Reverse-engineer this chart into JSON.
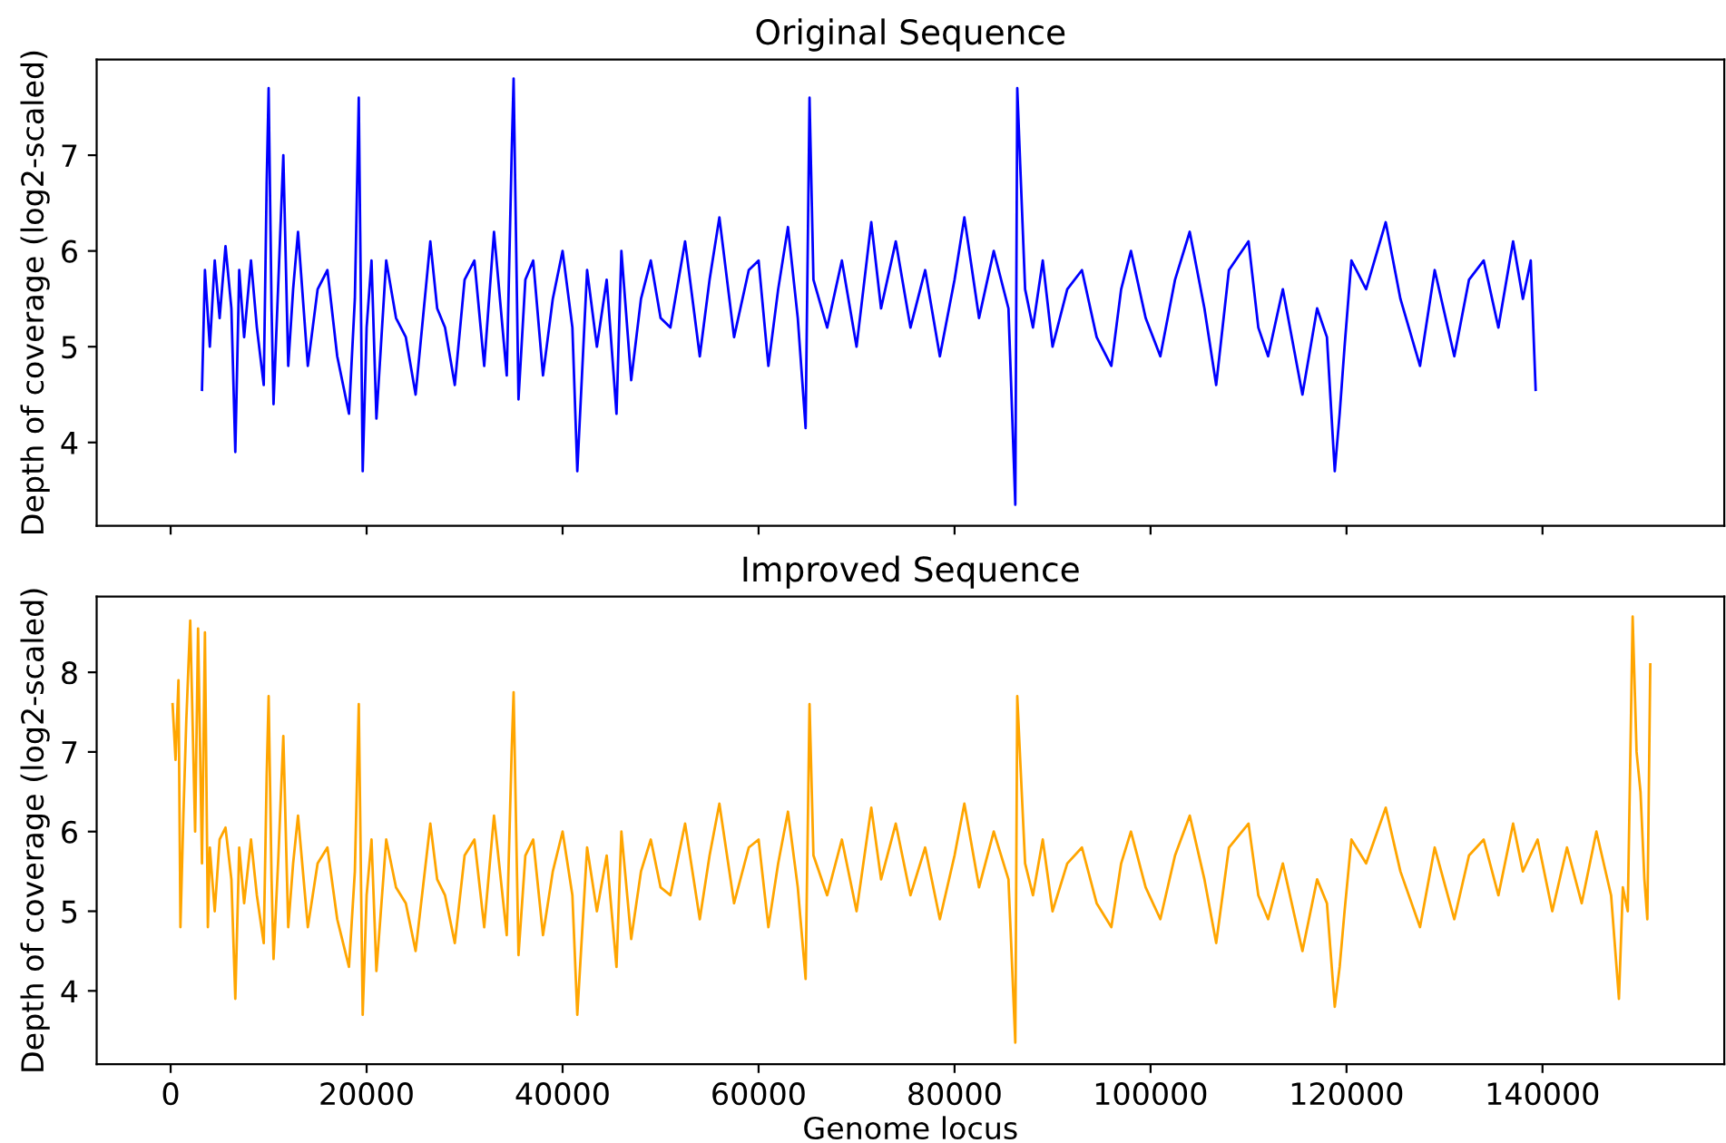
{
  "chart_data": [
    {
      "type": "line",
      "title": "Original Sequence",
      "ylabel": "Depth of coverage (log2-scaled)",
      "tick_labels": "y",
      "grid": false,
      "legend": false,
      "xlim": [
        -7550,
        158550
      ],
      "xticks": [
        0,
        20000,
        40000,
        60000,
        80000,
        100000,
        120000,
        140000
      ],
      "ylim": [
        3.13,
        8.0
      ],
      "yticks": [
        4,
        5,
        6,
        7
      ],
      "series": [
        {
          "color": "#0000ff",
          "x": [
            3200,
            3500,
            4000,
            4500,
            5000,
            5600,
            6200,
            6600,
            7000,
            7500,
            8200,
            8800,
            9500,
            9800,
            10000,
            10300,
            10500,
            11000,
            11500,
            12000,
            12500,
            13000,
            14000,
            15000,
            16000,
            17000,
            18200,
            18800,
            19200,
            19600,
            20000,
            20500,
            21000,
            22000,
            23000,
            24000,
            25000,
            26500,
            27200,
            28000,
            29000,
            30000,
            31000,
            32000,
            33000,
            34300,
            34800,
            35000,
            35500,
            36200,
            37000,
            38000,
            39000,
            40000,
            41000,
            41500,
            42500,
            43500,
            44500,
            45500,
            46000,
            47000,
            48000,
            49000,
            50000,
            51000,
            52500,
            54000,
            55000,
            56000,
            57500,
            59000,
            60000,
            61000,
            62000,
            63000,
            64000,
            64800,
            65200,
            65600,
            67000,
            68500,
            70000,
            71500,
            72500,
            74000,
            75500,
            77000,
            78500,
            80000,
            81000,
            82500,
            84000,
            85500,
            86200,
            86400,
            86700,
            87200,
            88000,
            89000,
            90000,
            91500,
            93000,
            94500,
            96000,
            97000,
            98000,
            99500,
            101000,
            102500,
            104000,
            105500,
            106700,
            108000,
            110000,
            111000,
            112000,
            113500,
            115500,
            117000,
            118000,
            118800,
            119300,
            119800,
            120500,
            122000,
            124000,
            125500,
            127500,
            129000,
            131000,
            132500,
            134000,
            135500,
            137000,
            138000,
            138800,
            139300
          ],
          "values": [
            4.55,
            5.8,
            5.0,
            5.9,
            5.3,
            6.05,
            5.4,
            3.9,
            5.8,
            5.1,
            5.9,
            5.2,
            4.6,
            6.7,
            7.7,
            5.4,
            4.4,
            5.7,
            7.0,
            4.8,
            5.6,
            6.2,
            4.8,
            5.6,
            5.8,
            4.9,
            4.3,
            5.5,
            7.6,
            3.7,
            5.2,
            5.9,
            4.25,
            5.9,
            5.3,
            5.1,
            4.5,
            6.1,
            5.4,
            5.2,
            4.6,
            5.7,
            5.9,
            4.8,
            6.2,
            4.7,
            7.0,
            7.8,
            4.45,
            5.7,
            5.9,
            4.7,
            5.5,
            6.0,
            5.2,
            3.7,
            5.8,
            5.0,
            5.7,
            4.3,
            6.0,
            4.65,
            5.5,
            5.9,
            5.3,
            5.2,
            6.1,
            4.9,
            5.7,
            6.35,
            5.1,
            5.8,
            5.9,
            4.8,
            5.6,
            6.25,
            5.3,
            4.15,
            7.6,
            5.7,
            5.2,
            5.9,
            5.0,
            6.3,
            5.4,
            6.1,
            5.2,
            5.8,
            4.9,
            5.7,
            6.35,
            5.3,
            6.0,
            5.4,
            3.35,
            7.7,
            6.9,
            5.6,
            5.2,
            5.9,
            5.0,
            5.6,
            5.8,
            5.1,
            4.8,
            5.6,
            6.0,
            5.3,
            4.9,
            5.7,
            6.2,
            5.4,
            4.6,
            5.8,
            6.1,
            5.2,
            4.9,
            5.6,
            4.5,
            5.4,
            5.1,
            3.7,
            4.3,
            5.0,
            5.9,
            5.6,
            6.3,
            5.5,
            4.8,
            5.8,
            4.9,
            5.7,
            5.9,
            5.2,
            6.1,
            5.5,
            5.9,
            4.55
          ]
        }
      ]
    },
    {
      "type": "line",
      "title": "Improved Sequence",
      "xlabel": "Genome locus",
      "ylabel": "Depth of coverage (log2-scaled)",
      "grid": false,
      "legend": false,
      "xlim": [
        -7550,
        158550
      ],
      "xticks": [
        0,
        20000,
        40000,
        60000,
        80000,
        100000,
        120000,
        140000
      ],
      "ylim": [
        3.08,
        8.95
      ],
      "yticks": [
        4,
        5,
        6,
        7,
        8
      ],
      "series": [
        {
          "color": "#ffa500",
          "x": [
            200,
            500,
            800,
            1000,
            1300,
            1600,
            2000,
            2500,
            2800,
            3200,
            3500,
            3800,
            4000,
            4500,
            5000,
            5600,
            6200,
            6600,
            7000,
            7500,
            8200,
            8800,
            9500,
            9800,
            10000,
            10300,
            10500,
            11000,
            11500,
            12000,
            12500,
            13000,
            14000,
            15000,
            16000,
            17000,
            18200,
            18800,
            19200,
            19600,
            20000,
            20500,
            21000,
            22000,
            23000,
            24000,
            25000,
            26500,
            27200,
            28000,
            29000,
            30000,
            31000,
            32000,
            33000,
            34300,
            34800,
            35000,
            35500,
            36200,
            37000,
            38000,
            39000,
            40000,
            41000,
            41500,
            42500,
            43500,
            44500,
            45500,
            46000,
            47000,
            48000,
            49000,
            50000,
            51000,
            52500,
            54000,
            55000,
            56000,
            57500,
            59000,
            60000,
            61000,
            62000,
            63000,
            64000,
            64800,
            65200,
            65600,
            67000,
            68500,
            70000,
            71500,
            72500,
            74000,
            75500,
            77000,
            78500,
            80000,
            81000,
            82500,
            84000,
            85500,
            86200,
            86400,
            86700,
            87200,
            88000,
            89000,
            90000,
            91500,
            93000,
            94500,
            96000,
            97000,
            98000,
            99500,
            101000,
            102500,
            104000,
            105500,
            106700,
            108000,
            110000,
            111000,
            112000,
            113500,
            115500,
            117000,
            118000,
            118800,
            119300,
            119800,
            120500,
            122000,
            124000,
            125500,
            127500,
            129000,
            131000,
            132500,
            134000,
            135500,
            137000,
            138000,
            139500,
            141000,
            142500,
            144000,
            145500,
            147000,
            147800,
            148200,
            148700,
            149200,
            149600,
            150000,
            150400,
            150700,
            151000
          ],
          "values": [
            7.6,
            6.9,
            7.9,
            4.8,
            6.2,
            7.4,
            8.65,
            6.0,
            8.55,
            5.6,
            8.5,
            4.8,
            5.8,
            5.0,
            5.9,
            6.05,
            5.4,
            3.9,
            5.8,
            5.1,
            5.9,
            5.2,
            4.6,
            6.7,
            7.7,
            5.4,
            4.4,
            5.7,
            7.2,
            4.8,
            5.6,
            6.2,
            4.8,
            5.6,
            5.8,
            4.9,
            4.3,
            5.5,
            7.6,
            3.7,
            5.2,
            5.9,
            4.25,
            5.9,
            5.3,
            5.1,
            4.5,
            6.1,
            5.4,
            5.2,
            4.6,
            5.7,
            5.9,
            4.8,
            6.2,
            4.7,
            7.0,
            7.75,
            4.45,
            5.7,
            5.9,
            4.7,
            5.5,
            6.0,
            5.2,
            3.7,
            5.8,
            5.0,
            5.7,
            4.3,
            6.0,
            4.65,
            5.5,
            5.9,
            5.3,
            5.2,
            6.1,
            4.9,
            5.7,
            6.35,
            5.1,
            5.8,
            5.9,
            4.8,
            5.6,
            6.25,
            5.3,
            4.15,
            7.6,
            5.7,
            5.2,
            5.9,
            5.0,
            6.3,
            5.4,
            6.1,
            5.2,
            5.8,
            4.9,
            5.7,
            6.35,
            5.3,
            6.0,
            5.4,
            3.35,
            7.7,
            6.9,
            5.6,
            5.2,
            5.9,
            5.0,
            5.6,
            5.8,
            5.1,
            4.8,
            5.6,
            6.0,
            5.3,
            4.9,
            5.7,
            6.2,
            5.4,
            4.6,
            5.8,
            6.1,
            5.2,
            4.9,
            5.6,
            4.5,
            5.4,
            5.1,
            3.8,
            4.3,
            5.0,
            5.9,
            5.6,
            6.3,
            5.5,
            4.8,
            5.8,
            4.9,
            5.7,
            5.9,
            5.2,
            6.1,
            5.5,
            5.9,
            5.0,
            5.8,
            5.1,
            6.0,
            5.2,
            3.9,
            5.3,
            5.0,
            8.7,
            7.0,
            6.5,
            5.4,
            4.9,
            8.1
          ]
        }
      ]
    }
  ]
}
